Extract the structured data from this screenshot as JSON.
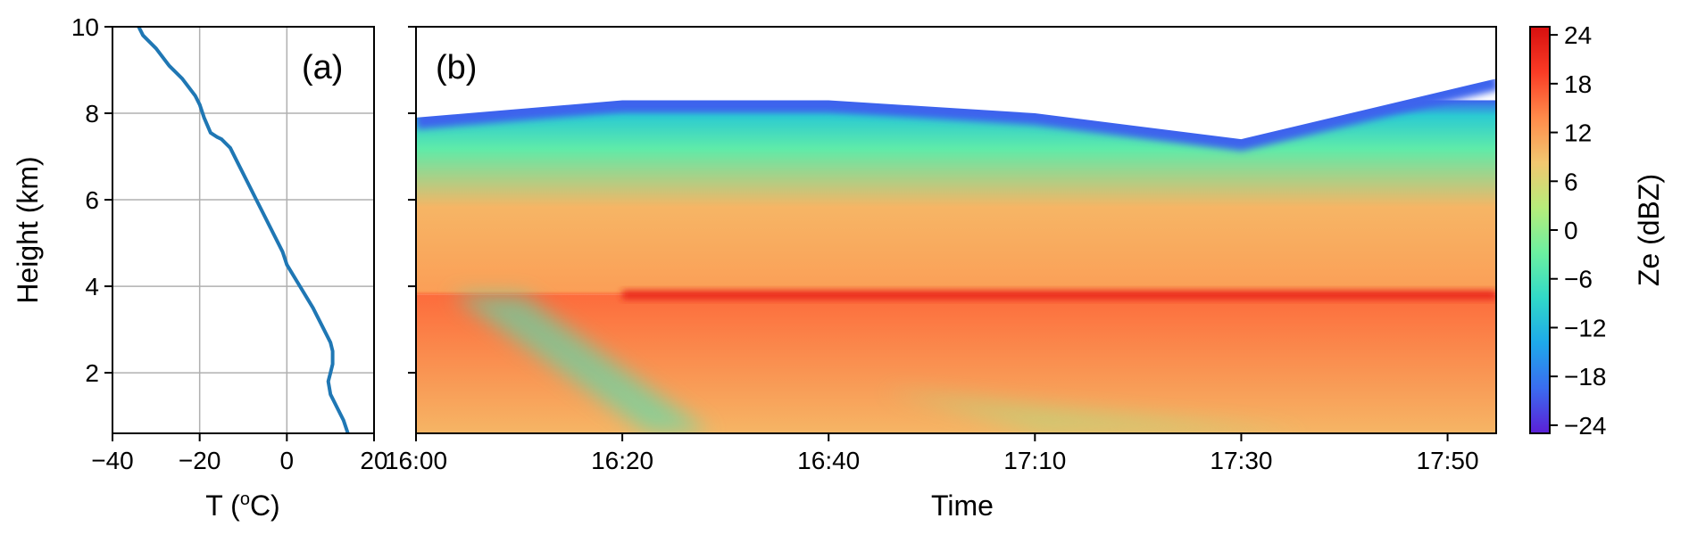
{
  "figure": {
    "panel_a_label": "(a)",
    "panel_b_label": "(b)"
  },
  "chart_data": [
    {
      "type": "line",
      "panel": "(a)",
      "xlabel_base": "T (",
      "xlabel_sup": "o",
      "xlabel_unit": "C)",
      "ylabel": "Height (km)",
      "xlim": [
        -40,
        20
      ],
      "ylim": [
        0.6,
        10
      ],
      "xticks": [
        -40,
        -20,
        0,
        20
      ],
      "xtick_labels": [
        "−40",
        "−20",
        "0",
        "20"
      ],
      "yticks": [
        2,
        4,
        6,
        8,
        10
      ],
      "ytick_labels": [
        "2",
        "4",
        "6",
        "8",
        "10"
      ],
      "grid": true,
      "series": [
        {
          "color": "#1f77b4",
          "x": [
            14,
            13,
            11.5,
            10,
            9.5,
            10,
            10.5,
            10.5,
            10,
            8,
            6,
            3,
            0,
            -1,
            -3,
            -5,
            -7,
            -9,
            -11,
            -13,
            -15,
            -16,
            -17.5,
            -19,
            -20,
            -21,
            -24,
            -27,
            -30,
            -33,
            -34
          ],
          "y": [
            0.6,
            0.9,
            1.2,
            1.5,
            1.8,
            2.0,
            2.2,
            2.5,
            2.7,
            3.1,
            3.5,
            4.0,
            4.5,
            4.8,
            5.2,
            5.6,
            6.0,
            6.4,
            6.8,
            7.2,
            7.4,
            7.45,
            7.55,
            7.9,
            8.2,
            8.4,
            8.8,
            9.1,
            9.5,
            9.8,
            10.0
          ]
        }
      ]
    },
    {
      "type": "heatmap",
      "panel": "(b)",
      "xlabel": "Time",
      "ylim": [
        0.6,
        10
      ],
      "xtick_labels": [
        "16:00",
        "16:20",
        "16:40",
        "17:10",
        "17:30",
        "17:50"
      ],
      "yticks": [
        2,
        4,
        6,
        8,
        10
      ],
      "colorscale": "rainbow",
      "colorbar": {
        "label": "Ze (dBZ)",
        "range": [
          -25,
          25
        ],
        "ticks": [
          24,
          18,
          12,
          6,
          0,
          -6,
          -12,
          -18,
          -24
        ],
        "tick_labels": [
          "24",
          "18",
          "12",
          "6",
          "0",
          "−6",
          "−12",
          "−18",
          "−24"
        ],
        "colors": [
          "#5b1fd6",
          "#3a6cf0",
          "#1ea9ea",
          "#31d9c8",
          "#6cf0a0",
          "#b7ec7a",
          "#f2c770",
          "#ff8a4a",
          "#f93b25",
          "#d70f0f"
        ]
      },
      "fields": {
        "cloud_top_km_at_ticks": [
          7.9,
          8.3,
          8.3,
          8.0,
          7.4,
          8.8
        ],
        "melting_layer_km": 3.8,
        "melting_layer_dBZ": 22,
        "reflectivity_aloft_dBZ": -10,
        "reflectivity_upper_dBZ": -4,
        "reflectivity_mid_dBZ": 10,
        "reflectivity_rain_dBZ": 16
      }
    }
  ]
}
